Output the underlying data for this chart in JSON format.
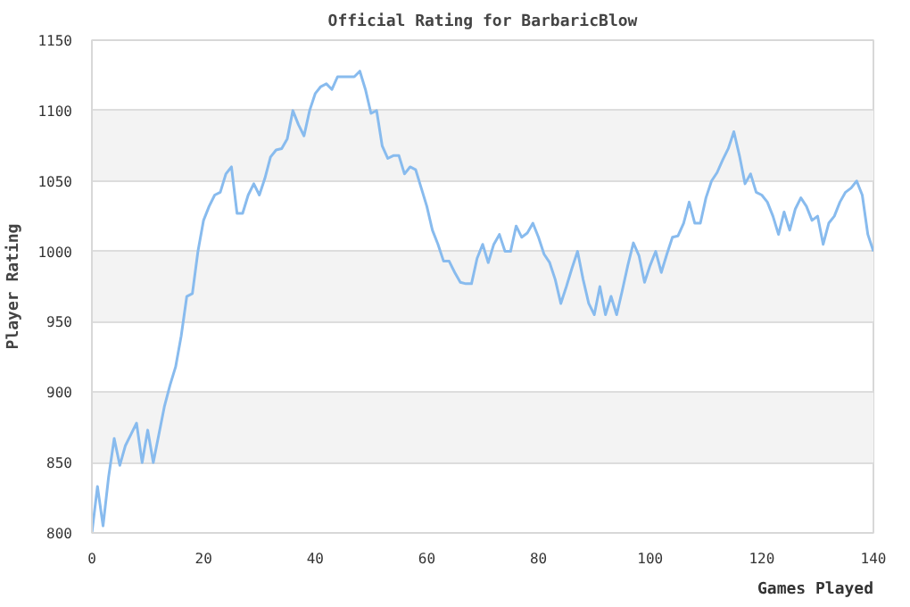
{
  "chart_data": {
    "type": "line",
    "title": "Official Rating for BarbaricBlow",
    "xlabel": "Games Played",
    "ylabel": "Player Rating",
    "x": [
      0,
      1,
      2,
      3,
      4,
      5,
      6,
      7,
      8,
      9,
      10,
      11,
      12,
      13,
      14,
      15,
      16,
      17,
      18,
      19,
      20,
      21,
      22,
      23,
      24,
      25,
      26,
      27,
      28,
      29,
      30,
      31,
      32,
      33,
      34,
      35,
      36,
      37,
      38,
      39,
      40,
      41,
      42,
      43,
      44,
      45,
      46,
      47,
      48,
      49,
      50,
      51,
      52,
      53,
      54,
      55,
      56,
      57,
      58,
      59,
      60,
      61,
      62,
      63,
      64,
      65,
      66,
      67,
      68,
      69,
      70,
      71,
      72,
      73,
      74,
      75,
      76,
      77,
      78,
      79,
      80,
      81,
      82,
      83,
      84,
      85,
      86,
      87,
      88,
      89,
      90,
      91,
      92,
      93,
      94,
      95,
      96,
      97,
      98,
      99,
      100,
      101,
      102,
      103,
      104,
      105,
      106,
      107,
      108,
      109,
      110,
      111,
      112,
      113,
      114,
      115,
      116,
      117,
      118,
      119,
      120,
      121,
      122,
      123,
      124,
      125,
      126,
      127,
      128,
      129,
      130,
      131,
      132,
      133,
      134,
      135,
      136,
      137,
      138,
      139,
      140
    ],
    "series": [
      {
        "color": "#88bbee",
        "values": [
          800,
          833,
          805,
          840,
          867,
          848,
          862,
          870,
          878,
          850,
          873,
          850,
          870,
          890,
          905,
          918,
          940,
          968,
          970,
          1000,
          1022,
          1032,
          1040,
          1042,
          1055,
          1060,
          1027,
          1027,
          1040,
          1048,
          1040,
          1052,
          1067,
          1072,
          1073,
          1080,
          1100,
          1090,
          1082,
          1100,
          1112,
          1117,
          1119,
          1115,
          1124,
          1124,
          1124,
          1124,
          1128,
          1115,
          1098,
          1100,
          1075,
          1066,
          1068,
          1068,
          1055,
          1060,
          1058,
          1045,
          1032,
          1015,
          1005,
          993,
          993,
          985,
          978,
          977,
          977,
          995,
          1005,
          992,
          1005,
          1012,
          1000,
          1000,
          1018,
          1010,
          1013,
          1020,
          1010,
          998,
          992,
          980,
          963,
          975,
          988,
          1000,
          980,
          963,
          955,
          975,
          955,
          968,
          955,
          972,
          990,
          1006,
          997,
          978,
          990,
          1000,
          985,
          998,
          1010,
          1011,
          1020,
          1035,
          1020,
          1020,
          1038,
          1050,
          1056,
          1065,
          1073,
          1085,
          1068,
          1048,
          1055,
          1042,
          1040,
          1035,
          1025,
          1012,
          1028,
          1015,
          1030,
          1038,
          1032,
          1022,
          1025,
          1005,
          1020,
          1025,
          1035,
          1042,
          1045,
          1050,
          1040,
          1012,
          1000
        ]
      }
    ],
    "xlim": [
      0,
      140
    ],
    "ylim": [
      800,
      1150
    ],
    "xticks": [
      0,
      20,
      40,
      60,
      80,
      100,
      120,
      140
    ],
    "yticks": [
      800,
      850,
      900,
      950,
      1000,
      1050,
      1100,
      1150
    ],
    "grid": "y",
    "marker": "none",
    "line_style": "solid"
  }
}
